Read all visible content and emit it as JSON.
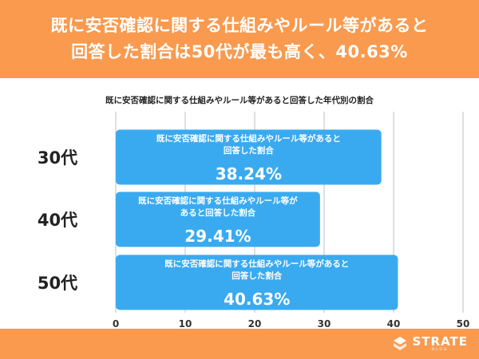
{
  "header": {
    "line1": "既に安否確認に関する仕組みやルール等があると",
    "line2": "回答した割合は50代が最も高く、40.63%"
  },
  "chart_data": {
    "type": "bar",
    "orientation": "horizontal",
    "title": "既に安否確認に関する仕組みやルール等があると回答した年代別の割合",
    "categories": [
      "30代",
      "40代",
      "50代"
    ],
    "values": [
      38.24,
      29.41,
      40.63
    ],
    "value_labels": [
      "38.24%",
      "29.41%",
      "40.63%"
    ],
    "bar_captions": [
      [
        "既に安否確認に関する仕組みやルール等があると",
        "回答した割合"
      ],
      [
        "既に安否確認に関する仕組みやルール等が",
        "あると回答した割合"
      ],
      [
        "既に安否確認に関する仕組みやルール等があると",
        "回答した割合"
      ]
    ],
    "xlim": [
      0,
      50
    ],
    "xticks": [
      0,
      10,
      20,
      30,
      40,
      50
    ],
    "xtick_labels": [
      "0",
      "10",
      "20",
      "30",
      "40",
      "50"
    ],
    "grid": true,
    "bar_color": "#3aaaf0"
  },
  "colors": {
    "accent": "#f99a4f",
    "bar": "#3aaaf0",
    "grid": "#bfbfbf"
  },
  "logo": {
    "icon": "strate-s-icon",
    "name": "STRATE",
    "sub": "BLOG"
  }
}
